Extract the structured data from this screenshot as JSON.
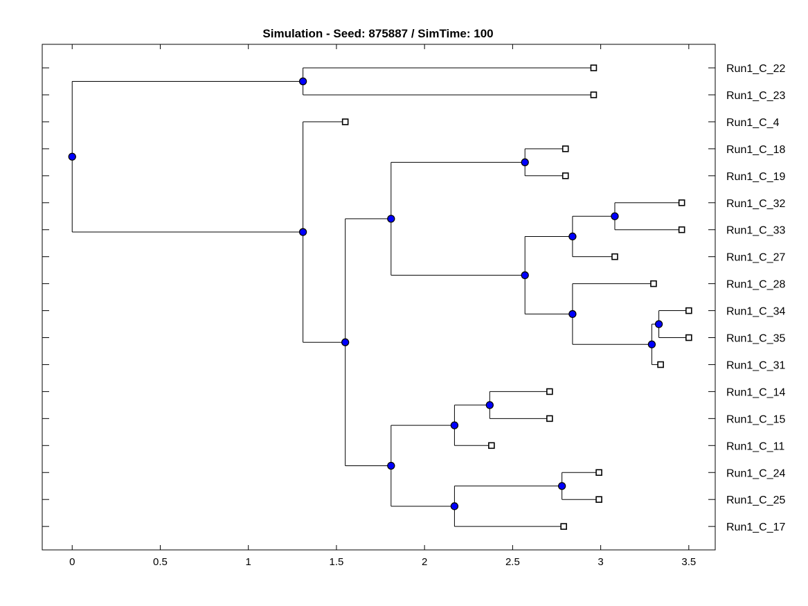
{
  "chart_data": {
    "type": "dendrogram",
    "title": "Simulation - Seed: 875887 / SimTime: 100",
    "xlim": [
      -0.17,
      3.65
    ],
    "xticks": [
      0,
      0.5,
      1,
      1.5,
      2,
      2.5,
      3,
      3.5
    ],
    "xtick_labels": [
      "0",
      "0.5",
      "1",
      "1.5",
      "2",
      "2.5",
      "3",
      "3.5"
    ],
    "leaves": [
      {
        "name": "Run1_C_22",
        "x": 2.96
      },
      {
        "name": "Run1_C_23",
        "x": 2.96
      },
      {
        "name": "Run1_C_4",
        "x": 1.55
      },
      {
        "name": "Run1_C_18",
        "x": 2.8
      },
      {
        "name": "Run1_C_19",
        "x": 2.8
      },
      {
        "name": "Run1_C_32",
        "x": 3.46
      },
      {
        "name": "Run1_C_33",
        "x": 3.46
      },
      {
        "name": "Run1_C_27",
        "x": 3.08
      },
      {
        "name": "Run1_C_28",
        "x": 3.3
      },
      {
        "name": "Run1_C_34",
        "x": 3.5
      },
      {
        "name": "Run1_C_35",
        "x": 3.5
      },
      {
        "name": "Run1_C_31",
        "x": 3.34
      },
      {
        "name": "Run1_C_14",
        "x": 2.71
      },
      {
        "name": "Run1_C_15",
        "x": 2.71
      },
      {
        "name": "Run1_C_11",
        "x": 2.38
      },
      {
        "name": "Run1_C_24",
        "x": 2.99
      },
      {
        "name": "Run1_C_25",
        "x": 2.99
      },
      {
        "name": "Run1_C_17",
        "x": 2.79
      }
    ],
    "tree": {
      "x": 0.0,
      "children": [
        {
          "x": 1.31,
          "children": [
            {
              "leaf": 0
            },
            {
              "leaf": 1
            }
          ]
        },
        {
          "x": 1.31,
          "children": [
            {
              "leaf": 2
            },
            {
              "x": 1.55,
              "children": [
                {
                  "x": 1.81,
                  "children": [
                    {
                      "x": 2.57,
                      "children": [
                        {
                          "leaf": 3
                        },
                        {
                          "leaf": 4
                        }
                      ]
                    },
                    {
                      "x": 2.57,
                      "children": [
                        {
                          "x": 2.84,
                          "children": [
                            {
                              "x": 3.08,
                              "children": [
                                {
                                  "leaf": 5
                                },
                                {
                                  "leaf": 6
                                }
                              ]
                            },
                            {
                              "leaf": 7
                            }
                          ]
                        },
                        {
                          "x": 2.84,
                          "children": [
                            {
                              "leaf": 8
                            },
                            {
                              "x": 3.29,
                              "children": [
                                {
                                  "x": 3.33,
                                  "children": [
                                    {
                                      "leaf": 9
                                    },
                                    {
                                      "leaf": 10
                                    }
                                  ]
                                },
                                {
                                  "leaf": 11
                                }
                              ]
                            }
                          ]
                        }
                      ]
                    }
                  ]
                },
                {
                  "x": 1.81,
                  "children": [
                    {
                      "x": 2.17,
                      "children": [
                        {
                          "x": 2.37,
                          "children": [
                            {
                              "leaf": 12
                            },
                            {
                              "leaf": 13
                            }
                          ]
                        },
                        {
                          "leaf": 14
                        }
                      ]
                    },
                    {
                      "x": 2.17,
                      "children": [
                        {
                          "x": 2.78,
                          "children": [
                            {
                              "leaf": 15
                            },
                            {
                              "leaf": 16
                            }
                          ]
                        },
                        {
                          "leaf": 17
                        }
                      ]
                    }
                  ]
                }
              ]
            }
          ]
        }
      ]
    },
    "colors": {
      "internal_node_fill": "#0000ff",
      "leaf_marker_fill": "#ffffff",
      "line": "#000000",
      "axes": "#000000"
    }
  }
}
